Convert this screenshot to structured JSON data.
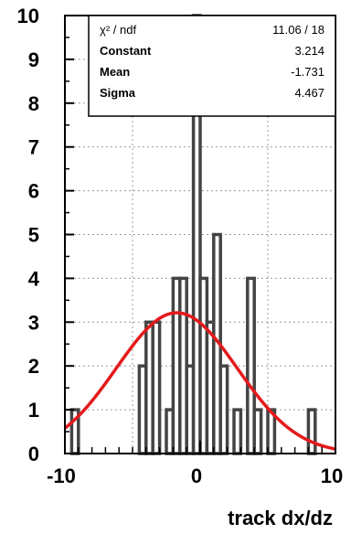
{
  "chart_data": {
    "type": "bar",
    "subtype": "histogram",
    "xlabel": "track dx/dz",
    "ylabel": "",
    "xlim": [
      -10,
      10
    ],
    "ylim": [
      0,
      10
    ],
    "x_ticks": [
      -10,
      0,
      10
    ],
    "y_ticks": [
      0,
      1,
      2,
      3,
      4,
      5,
      6,
      7,
      8,
      9,
      10
    ],
    "grid": true,
    "bin_width": 0.5,
    "bins": [
      {
        "x0": -9.5,
        "count": 1
      },
      {
        "x0": -4.5,
        "count": 2
      },
      {
        "x0": -4.0,
        "count": 3
      },
      {
        "x0": -3.5,
        "count": 3
      },
      {
        "x0": -2.5,
        "count": 1
      },
      {
        "x0": -2.0,
        "count": 4
      },
      {
        "x0": -1.5,
        "count": 4
      },
      {
        "x0": -1.0,
        "count": 2
      },
      {
        "x0": -0.5,
        "count": 10
      },
      {
        "x0": 0.0,
        "count": 4
      },
      {
        "x0": 0.5,
        "count": 3
      },
      {
        "x0": 1.0,
        "count": 5
      },
      {
        "x0": 1.5,
        "count": 2
      },
      {
        "x0": 2.5,
        "count": 1
      },
      {
        "x0": 3.5,
        "count": 4
      },
      {
        "x0": 4.0,
        "count": 1
      },
      {
        "x0": 5.0,
        "count": 1
      },
      {
        "x0": 8.0,
        "count": 1
      }
    ],
    "fit": {
      "function": "gaus",
      "color": "#e41a1c",
      "constant": 3.214,
      "mean": -1.731,
      "sigma": 4.467
    },
    "stats_box": {
      "placement": "top-right",
      "rows": [
        {
          "label": "χ² / ndf",
          "value": "11.06   /   18"
        },
        {
          "label": "Constant",
          "value": "3.214"
        },
        {
          "label": "Mean",
          "value": "-1.731"
        },
        {
          "label": "Sigma",
          "value": "4.467"
        }
      ]
    }
  }
}
